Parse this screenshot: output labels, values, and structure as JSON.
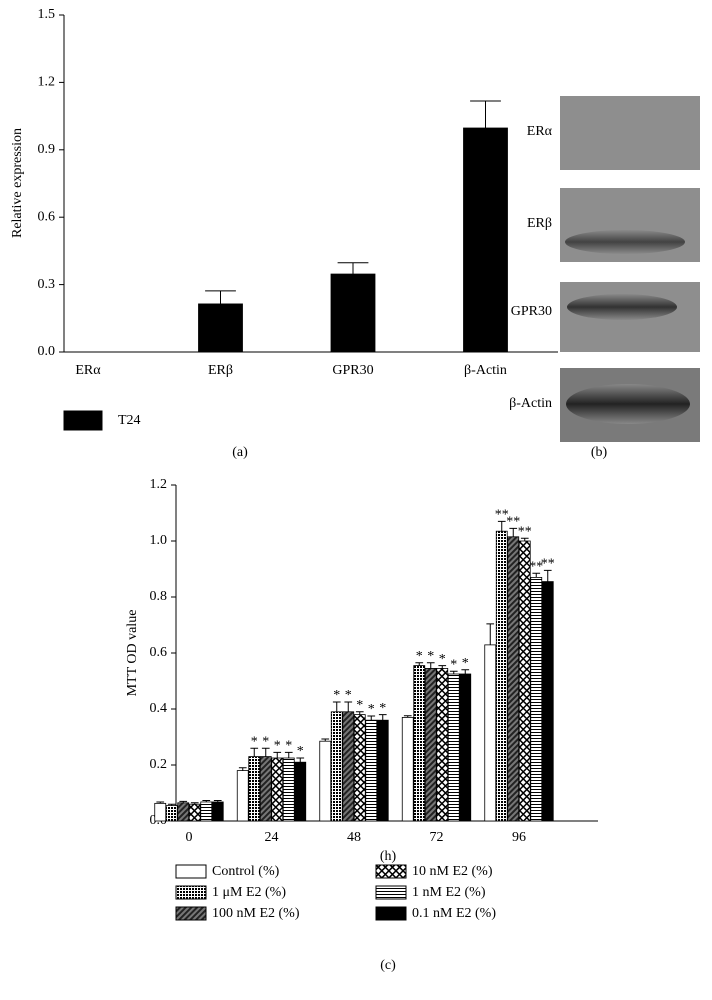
{
  "chart_data": [
    {
      "type": "bar",
      "y_label": "Relative expression",
      "caption": "(a)",
      "categories": [
        "ERα",
        "ERβ",
        "GPR30",
        "β-Actin"
      ],
      "series": [
        {
          "name": "T24",
          "color": "#000000",
          "pattern": "solid",
          "values": [
            0,
            0.214,
            0.347,
            0.997
          ],
          "errors": [
            0,
            0.058,
            0.05,
            0.12
          ]
        }
      ],
      "ylim": [
        0,
        1.5
      ],
      "yticks": [
        {
          "value": 0,
          "label": "0.0"
        },
        0.3,
        0.6,
        0.9,
        1.2,
        1.5
      ]
    },
    {
      "type": "bar",
      "y_label": "MTT OD value",
      "x_label": "(h)",
      "caption": "(c)",
      "categories": [
        "0",
        "24",
        "48",
        "72",
        "96"
      ],
      "series": [
        {
          "name": "Control (%)",
          "color": "#000000",
          "pattern": "none",
          "values": [
            0.063,
            0.18,
            0.285,
            0.37,
            0.629
          ],
          "errors": [
            0.005,
            0.01,
            0.008,
            0.006,
            0.075
          ]
        },
        {
          "name": "1 μM E2 (%)",
          "color": "#000000",
          "pattern": "grid",
          "values": [
            0.055,
            0.23,
            0.39,
            0.555,
            1.035
          ],
          "errors": [
            0.005,
            0.03,
            0.035,
            0.01,
            0.035
          ],
          "annotations": [
            null,
            "*",
            "*",
            "*",
            "**"
          ]
        },
        {
          "name": "100 nM E2 (%)",
          "color": "#000000",
          "pattern": "diagonal",
          "values": [
            0.065,
            0.23,
            0.39,
            0.545,
            1.015
          ],
          "errors": [
            0.005,
            0.03,
            0.035,
            0.02,
            0.03
          ],
          "annotations": [
            null,
            "*",
            "*",
            "*",
            "**"
          ]
        },
        {
          "name": "10 nM E2 (%)",
          "color": "#000000",
          "pattern": "crosshatch",
          "values": [
            0.06,
            0.225,
            0.38,
            0.545,
            1.0
          ],
          "errors": [
            0.005,
            0.02,
            0.01,
            0.01,
            0.01
          ],
          "annotations": [
            null,
            "*",
            "*",
            "*",
            "**"
          ]
        },
        {
          "name": "1 nM E2 (%)",
          "color": "#000000",
          "pattern": "horizontal",
          "values": [
            0.068,
            0.225,
            0.36,
            0.525,
            0.87
          ],
          "errors": [
            0.005,
            0.02,
            0.015,
            0.01,
            0.015
          ],
          "annotations": [
            null,
            "*",
            "*",
            "*",
            "**"
          ]
        },
        {
          "name": "0.1 nM E2 (%)",
          "color": "#000000",
          "pattern": "solid",
          "values": [
            0.068,
            0.21,
            0.36,
            0.525,
            0.855
          ],
          "errors": [
            0.005,
            0.015,
            0.02,
            0.015,
            0.04
          ],
          "annotations": [
            null,
            "*",
            "*",
            "*",
            "**"
          ]
        }
      ],
      "ylim": [
        0,
        1.2
      ],
      "yticks": [
        {
          "value": 0,
          "label": "0.0"
        },
        0.2,
        0.4,
        0.6,
        0.8,
        {
          "value": 1,
          "label": "1.0"
        },
        1.2
      ]
    }
  ],
  "blot": {
    "labels": [
      "ERα",
      "ERβ",
      "GPR30",
      "β-Actin"
    ],
    "caption": "(b)"
  }
}
